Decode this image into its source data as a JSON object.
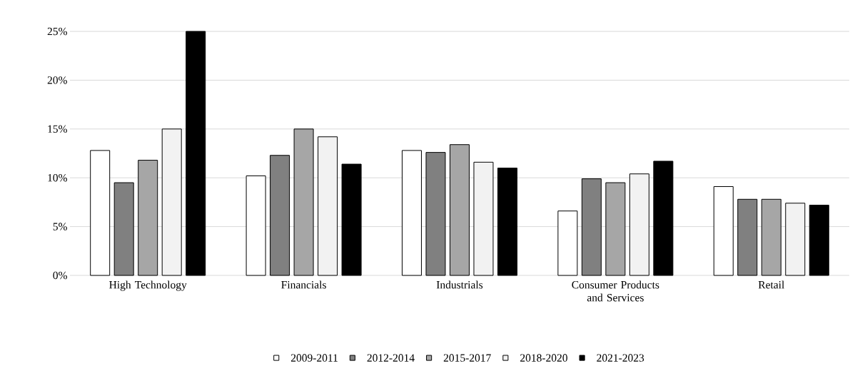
{
  "chart_data": {
    "type": "bar",
    "categories": [
      "High Technology",
      "Financials",
      "Industrials",
      "Consumer Products and Services",
      "Retail"
    ],
    "series": [
      {
        "name": "2009-2011",
        "color": "#ffffff",
        "values": [
          12.8,
          10.2,
          12.8,
          6.6,
          9.1
        ]
      },
      {
        "name": "2012-2014",
        "color": "#808080",
        "values": [
          9.5,
          12.3,
          12.6,
          9.9,
          7.8
        ]
      },
      {
        "name": "2015-2017",
        "color": "#a6a6a6",
        "values": [
          11.8,
          15.0,
          13.4,
          9.5,
          7.8
        ]
      },
      {
        "name": "2018-2020",
        "color": "#f2f2f2",
        "values": [
          15.0,
          14.2,
          11.6,
          10.4,
          7.4
        ]
      },
      {
        "name": "2021-2023",
        "color": "#000000",
        "values": [
          25.0,
          11.4,
          11.0,
          11.7,
          7.2
        ]
      }
    ],
    "ylim": [
      0,
      25
    ],
    "yticks": [
      {
        "value": 0,
        "label": "0%"
      },
      {
        "value": 5,
        "label": "5%"
      },
      {
        "value": 10,
        "label": "10%"
      },
      {
        "value": 15,
        "label": "15%"
      },
      {
        "value": 20,
        "label": "20%"
      },
      {
        "value": 25,
        "label": "25%"
      }
    ],
    "grid": "y",
    "legend": "bottom"
  }
}
